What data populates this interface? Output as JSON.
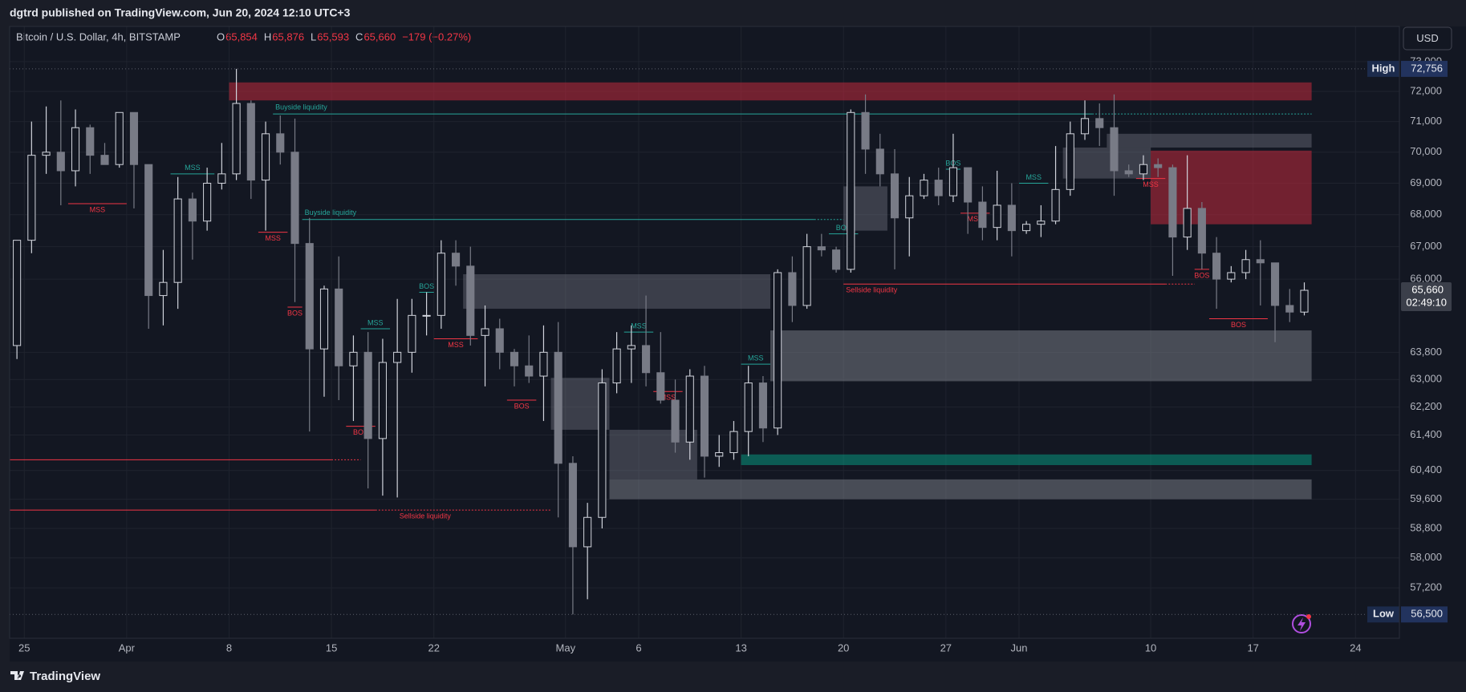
{
  "header": "dgtrd published on TradingView.com, Jun 20, 2024 12:10 UTC+3",
  "footer_brand": "TradingView",
  "currency_button": "USD",
  "legend": {
    "symbol": "Bitcoin / U.S. Dollar, 4h, BITSTAMP",
    "fields": [
      {
        "key": "O",
        "value": "65,854"
      },
      {
        "key": "H",
        "value": "65,876"
      },
      {
        "key": "L",
        "value": "65,593"
      },
      {
        "key": "C",
        "value": "65,660"
      }
    ],
    "change": "−179 (−0.27%)"
  },
  "chart_data": {
    "type": "candlestick",
    "log": true,
    "grid": true,
    "up_color": "#d1d4dc",
    "down_color": "#787b86",
    "x": [
      "2024-03-24",
      "2024-03-25",
      "2024-03-26",
      "2024-03-27",
      "2024-03-28",
      "2024-03-29",
      "2024-03-30",
      "2024-03-31",
      "2024-04-01",
      "2024-04-02",
      "2024-04-03",
      "2024-04-04",
      "2024-04-05",
      "2024-04-06",
      "2024-04-07",
      "2024-04-08",
      "2024-04-09",
      "2024-04-10",
      "2024-04-11",
      "2024-04-12",
      "2024-04-13",
      "2024-04-14",
      "2024-04-15",
      "2024-04-16",
      "2024-04-17",
      "2024-04-18",
      "2024-04-19",
      "2024-04-20",
      "2024-04-21",
      "2024-04-22",
      "2024-04-23",
      "2024-04-24",
      "2024-04-25",
      "2024-04-26",
      "2024-04-27",
      "2024-04-28",
      "2024-04-29",
      "2024-04-30",
      "2024-05-01",
      "2024-05-02",
      "2024-05-03",
      "2024-05-04",
      "2024-05-05",
      "2024-05-06",
      "2024-05-07",
      "2024-05-08",
      "2024-05-09",
      "2024-05-10",
      "2024-05-11",
      "2024-05-12",
      "2024-05-13",
      "2024-05-14",
      "2024-05-15",
      "2024-05-16",
      "2024-05-17",
      "2024-05-18",
      "2024-05-19",
      "2024-05-20",
      "2024-05-21",
      "2024-05-22",
      "2024-05-23",
      "2024-05-24",
      "2024-05-25",
      "2024-05-26",
      "2024-05-27",
      "2024-05-28",
      "2024-05-29",
      "2024-05-30",
      "2024-05-31",
      "2024-06-01",
      "2024-06-02",
      "2024-06-03",
      "2024-06-04",
      "2024-06-05",
      "2024-06-06",
      "2024-06-07",
      "2024-06-08",
      "2024-06-09",
      "2024-06-10",
      "2024-06-11",
      "2024-06-12",
      "2024-06-13",
      "2024-06-14",
      "2024-06-15",
      "2024-06-16",
      "2024-06-17",
      "2024-06-18",
      "2024-06-19",
      "2024-06-20"
    ],
    "open": [
      64000,
      67200,
      69900,
      70000,
      69400,
      70800,
      69900,
      69600,
      71300,
      69600,
      65500,
      65900,
      68500,
      67800,
      69000,
      69300,
      71600,
      69100,
      70600,
      70000,
      67100,
      63900,
      65700,
      63400,
      63800,
      61300,
      63500,
      63800,
      64900,
      64900,
      66800,
      66400,
      64300,
      64500,
      63800,
      63400,
      63100,
      63800,
      60600,
      58300,
      59100,
      62900,
      63900,
      64000,
      63200,
      62400,
      61200,
      63100,
      60800,
      60900,
      61500,
      62900,
      61600,
      66200,
      65200,
      67000,
      66900,
      66300,
      71300,
      70100,
      69300,
      67900,
      68600,
      69100,
      68600,
      69500,
      68400,
      67600,
      68300,
      67500,
      67700,
      67800,
      68800,
      70600,
      71100,
      70800,
      69400,
      69300,
      69600,
      69500,
      67300,
      68200,
      66800,
      66000,
      66200,
      66600,
      66500,
      65200,
      65000
    ],
    "high": [
      67200,
      71000,
      71500,
      71700,
      71400,
      70900,
      70300,
      71300,
      71300,
      69600,
      66900,
      69200,
      68700,
      69500,
      70300,
      72756,
      71700,
      71000,
      71200,
      71100,
      67900,
      65800,
      66700,
      64300,
      64400,
      64200,
      65400,
      65400,
      65600,
      67200,
      67200,
      67000,
      65200,
      64800,
      63900,
      64300,
      64600,
      64700,
      60800,
      59500,
      63300,
      64400,
      64600,
      65500,
      64400,
      63000,
      63300,
      63400,
      61400,
      61800,
      63400,
      63100,
      66300,
      66700,
      67400,
      67400,
      67000,
      71400,
      71900,
      70600,
      70100,
      69200,
      69300,
      69500,
      70600,
      69500,
      68900,
      69400,
      69000,
      67800,
      68300,
      70200,
      71000,
      71700,
      71600,
      71900,
      69600,
      69900,
      69800,
      69600,
      69900,
      68400,
      67300,
      66400,
      66900,
      67200,
      66500,
      65700,
      65900
    ],
    "low": [
      63600,
      66800,
      69300,
      68300,
      68900,
      69300,
      69600,
      69500,
      68200,
      64500,
      64600,
      65100,
      66600,
      67500,
      68800,
      69100,
      68500,
      67500,
      69600,
      65300,
      61500,
      62500,
      62400,
      61800,
      59900,
      59700,
      59650,
      63200,
      64300,
      64500,
      65800,
      64000,
      62800,
      63300,
      62800,
      62900,
      61800,
      59100,
      56500,
      56900,
      58800,
      62600,
      62900,
      62800,
      62300,
      60900,
      60700,
      60200,
      60500,
      60700,
      60800,
      61200,
      61400,
      64700,
      65100,
      66700,
      66200,
      66200,
      69300,
      68900,
      66300,
      66700,
      68500,
      68300,
      68400,
      67400,
      67200,
      67200,
      66700,
      67400,
      67300,
      67700,
      68600,
      70400,
      70200,
      68600,
      69200,
      69100,
      69200,
      66100,
      66900,
      66300,
      65100,
      65900,
      66000,
      65200,
      64100,
      64700,
      64900
    ],
    "close": [
      67200,
      69900,
      70000,
      69400,
      70800,
      69900,
      69600,
      71300,
      69600,
      65500,
      65900,
      68500,
      67800,
      69000,
      69300,
      71600,
      69100,
      70600,
      70000,
      67100,
      63900,
      65700,
      63400,
      63800,
      61300,
      63500,
      63800,
      64900,
      64900,
      66800,
      66400,
      64300,
      64500,
      63800,
      63400,
      63100,
      63800,
      60600,
      58300,
      59100,
      62900,
      63900,
      64000,
      63200,
      62400,
      61200,
      63100,
      60800,
      60900,
      61500,
      62900,
      61600,
      66200,
      65200,
      67000,
      66900,
      66300,
      71300,
      70100,
      69300,
      67900,
      68600,
      69100,
      68600,
      69500,
      68400,
      67600,
      68300,
      67500,
      67700,
      67800,
      68800,
      70600,
      71100,
      70800,
      69400,
      69300,
      69600,
      69500,
      67300,
      68200,
      66800,
      66000,
      66200,
      66600,
      66500,
      65200,
      65000,
      65660
    ],
    "xlim": [
      "2024-03-24",
      "2024-06-27"
    ],
    "ylim": [
      55880,
      74200
    ],
    "xticks": [
      {
        "value": "2024-03-25",
        "label": "25"
      },
      {
        "value": "2024-04-01",
        "label": "Apr"
      },
      {
        "value": "2024-04-08",
        "label": "8"
      },
      {
        "value": "2024-04-15",
        "label": "15"
      },
      {
        "value": "2024-04-22",
        "label": "22"
      },
      {
        "value": "2024-05-01",
        "label": "May"
      },
      {
        "value": "2024-05-06",
        "label": "6"
      },
      {
        "value": "2024-05-13",
        "label": "13"
      },
      {
        "value": "2024-05-20",
        "label": "20"
      },
      {
        "value": "2024-05-27",
        "label": "27"
      },
      {
        "value": "2024-06-01",
        "label": "Jun"
      },
      {
        "value": "2024-06-10",
        "label": "10"
      },
      {
        "value": "2024-06-17",
        "label": "17"
      },
      {
        "value": "2024-06-24",
        "label": "24"
      }
    ],
    "yticks": [
      {
        "value": 73000,
        "label": "73,000"
      },
      {
        "value": 72000,
        "label": "72,000"
      },
      {
        "value": 71000,
        "label": "71,000"
      },
      {
        "value": 70000,
        "label": "70,000"
      },
      {
        "value": 69000,
        "label": "69,000"
      },
      {
        "value": 68000,
        "label": "68,000"
      },
      {
        "value": 67000,
        "label": "67,000"
      },
      {
        "value": 66000,
        "label": "66,000"
      },
      {
        "value": 63800,
        "label": "63,800"
      },
      {
        "value": 63000,
        "label": "63,000"
      },
      {
        "value": 62200,
        "label": "62,200"
      },
      {
        "value": 61400,
        "label": "61,400"
      },
      {
        "value": 60400,
        "label": "60,400"
      },
      {
        "value": 59600,
        "label": "59,600"
      },
      {
        "value": 58800,
        "label": "58,800"
      },
      {
        "value": 58000,
        "label": "58,000"
      },
      {
        "value": 57200,
        "label": "57,200"
      }
    ],
    "zones": [
      {
        "top": 72300,
        "bottom": 71700,
        "start": "2024-04-08",
        "end": "2024-06-21",
        "color": "#b2283a99"
      },
      {
        "top": 66150,
        "bottom": 65100,
        "start": "2024-04-24",
        "end": "2024-05-15",
        "color": "#787b8666"
      },
      {
        "top": 64450,
        "bottom": 62950,
        "start": "2024-05-15",
        "end": "2024-06-21",
        "color": "#787b8688"
      },
      {
        "top": 60150,
        "bottom": 59600,
        "start": "2024-05-04",
        "end": "2024-06-21",
        "color": "#787b8688"
      },
      {
        "top": 61550,
        "bottom": 60150,
        "start": "2024-05-04",
        "end": "2024-05-10",
        "color": "#787b8666"
      },
      {
        "top": 60850,
        "bottom": 60550,
        "start": "2024-05-13",
        "end": "2024-06-21",
        "color": "#08998188"
      },
      {
        "top": 70050,
        "bottom": 67700,
        "start": "2024-06-10",
        "end": "2024-06-21",
        "color": "#b2283a99"
      },
      {
        "top": 70600,
        "bottom": 70150,
        "start": "2024-06-07",
        "end": "2024-06-21",
        "color": "#787b8666"
      },
      {
        "top": 68900,
        "bottom": 67500,
        "start": "2024-05-20",
        "end": "2024-05-23",
        "color": "#787b8666"
      },
      {
        "top": 63050,
        "bottom": 61550,
        "start": "2024-04-30",
        "end": "2024-05-04",
        "color": "#787b8666"
      },
      {
        "top": 70150,
        "bottom": 69150,
        "start": "2024-06-04",
        "end": "2024-06-10",
        "color": "#787b8666"
      }
    ],
    "levels": [
      {
        "text": "Buyside liquidity",
        "price": 71250,
        "start": "2024-04-11",
        "swept": "2024-06-06",
        "end": "2024-06-21",
        "color": "#26a69a"
      },
      {
        "text": "Buyside liquidity",
        "price": 67850,
        "start": "2024-04-13",
        "swept": "2024-05-18",
        "end": "2024-05-20",
        "color": "#26a69a"
      },
      {
        "text": "Sellside liquidity",
        "price": 65850,
        "start": "2024-05-20",
        "swept": "2024-06-11",
        "end": "2024-06-13",
        "color": "#f23645"
      },
      {
        "text": "Sellside liquidity",
        "price": 59300,
        "start": "2024-03-24",
        "swept": "2024-04-18",
        "end": "2024-04-30",
        "color": "#f23645"
      },
      {
        "price": 60700,
        "start": "2024-03-24",
        "swept": "2024-04-15",
        "end": "2024-04-17",
        "color": "#f23645"
      }
    ],
    "structures": [
      {
        "text": "MSS",
        "price": 68350,
        "start": "2024-03-28",
        "end": "2024-04-01",
        "color": "#f23645"
      },
      {
        "text": "MSS",
        "price": 69300,
        "start": "2024-04-04",
        "end": "2024-04-07",
        "color": "#26a69a"
      },
      {
        "text": "MSS",
        "price": 67450,
        "start": "2024-04-10",
        "end": "2024-04-12",
        "color": "#f23645"
      },
      {
        "text": "BOS",
        "price": 65150,
        "start": "2024-04-12",
        "end": "2024-04-13",
        "color": "#f23645"
      },
      {
        "text": "MSS",
        "price": 64500,
        "start": "2024-04-17",
        "end": "2024-04-19",
        "color": "#26a69a"
      },
      {
        "text": "BOS",
        "price": 61650,
        "start": "2024-04-16",
        "end": "2024-04-18",
        "color": "#f23645"
      },
      {
        "text": "BOS",
        "price": 65600,
        "start": "2024-04-21",
        "end": "2024-04-22",
        "color": "#26a69a"
      },
      {
        "text": "MSS",
        "price": 64200,
        "start": "2024-04-22",
        "end": "2024-04-25",
        "color": "#f23645"
      },
      {
        "text": "BOS",
        "price": 62400,
        "start": "2024-04-27",
        "end": "2024-04-29",
        "color": "#f23645"
      },
      {
        "text": "MSS",
        "price": 64400,
        "start": "2024-05-05",
        "end": "2024-05-07",
        "color": "#26a69a"
      },
      {
        "text": "MSS",
        "price": 62650,
        "start": "2024-05-07",
        "end": "2024-05-09",
        "color": "#f23645"
      },
      {
        "text": "MSS",
        "price": 63450,
        "start": "2024-05-13",
        "end": "2024-05-15",
        "color": "#26a69a"
      },
      {
        "text": "BOS",
        "price": 67400,
        "start": "2024-05-19",
        "end": "2024-05-21",
        "color": "#26a69a"
      },
      {
        "text": "BOS",
        "price": 69450,
        "start": "2024-05-27",
        "end": "2024-05-28",
        "color": "#26a69a"
      },
      {
        "text": "MSS",
        "price": 68050,
        "start": "2024-05-28",
        "end": "2024-05-30",
        "color": "#f23645"
      },
      {
        "text": "MSS",
        "price": 69000,
        "start": "2024-06-01",
        "end": "2024-06-03",
        "color": "#26a69a"
      },
      {
        "text": "MSS",
        "price": 69150,
        "start": "2024-06-09",
        "end": "2024-06-11",
        "color": "#f23645"
      },
      {
        "text": "BOS",
        "price": 66300,
        "start": "2024-06-13",
        "end": "2024-06-14",
        "color": "#f23645"
      },
      {
        "text": "BOS",
        "price": 64800,
        "start": "2024-06-14",
        "end": "2024-06-18",
        "color": "#f23645"
      }
    ],
    "high_marker": {
      "label": "High",
      "value": 72756,
      "value_label": "72,756"
    },
    "low_marker": {
      "label": "Low",
      "value": 56500,
      "value_label": "56,500"
    },
    "last_price": {
      "value": 65660,
      "value_label": "65,660",
      "countdown": "02:49:10"
    }
  }
}
